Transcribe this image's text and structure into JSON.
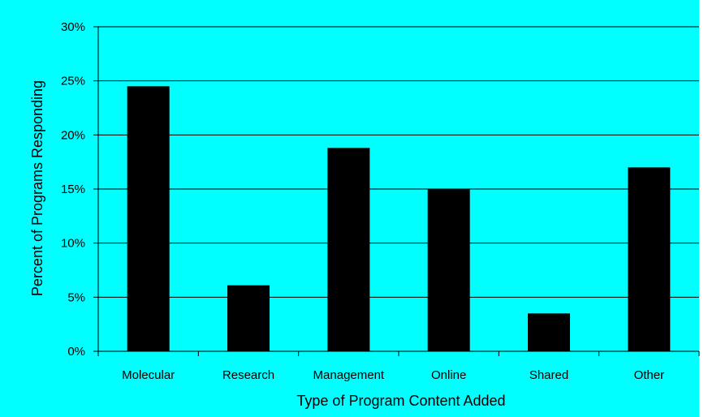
{
  "chart_data": {
    "type": "bar",
    "categories": [
      "Molecular",
      "Research",
      "Management",
      "Online",
      "Shared",
      "Other"
    ],
    "values": [
      24.5,
      6.1,
      18.8,
      15.0,
      3.5,
      17.0
    ],
    "xlabel": "Type of Program Content Added",
    "ylabel": "Percent of Programs Responding",
    "ylim": [
      0,
      30
    ],
    "yticks": [
      0,
      5,
      10,
      15,
      20,
      25,
      30
    ],
    "ytick_labels": [
      "0%",
      "5%",
      "10%",
      "15%",
      "20%",
      "25%",
      "30%"
    ],
    "grid": "horizontal",
    "legend": "none",
    "colors": {
      "background": "#00ffff",
      "bar": "#000000",
      "grid": "#000000"
    }
  }
}
